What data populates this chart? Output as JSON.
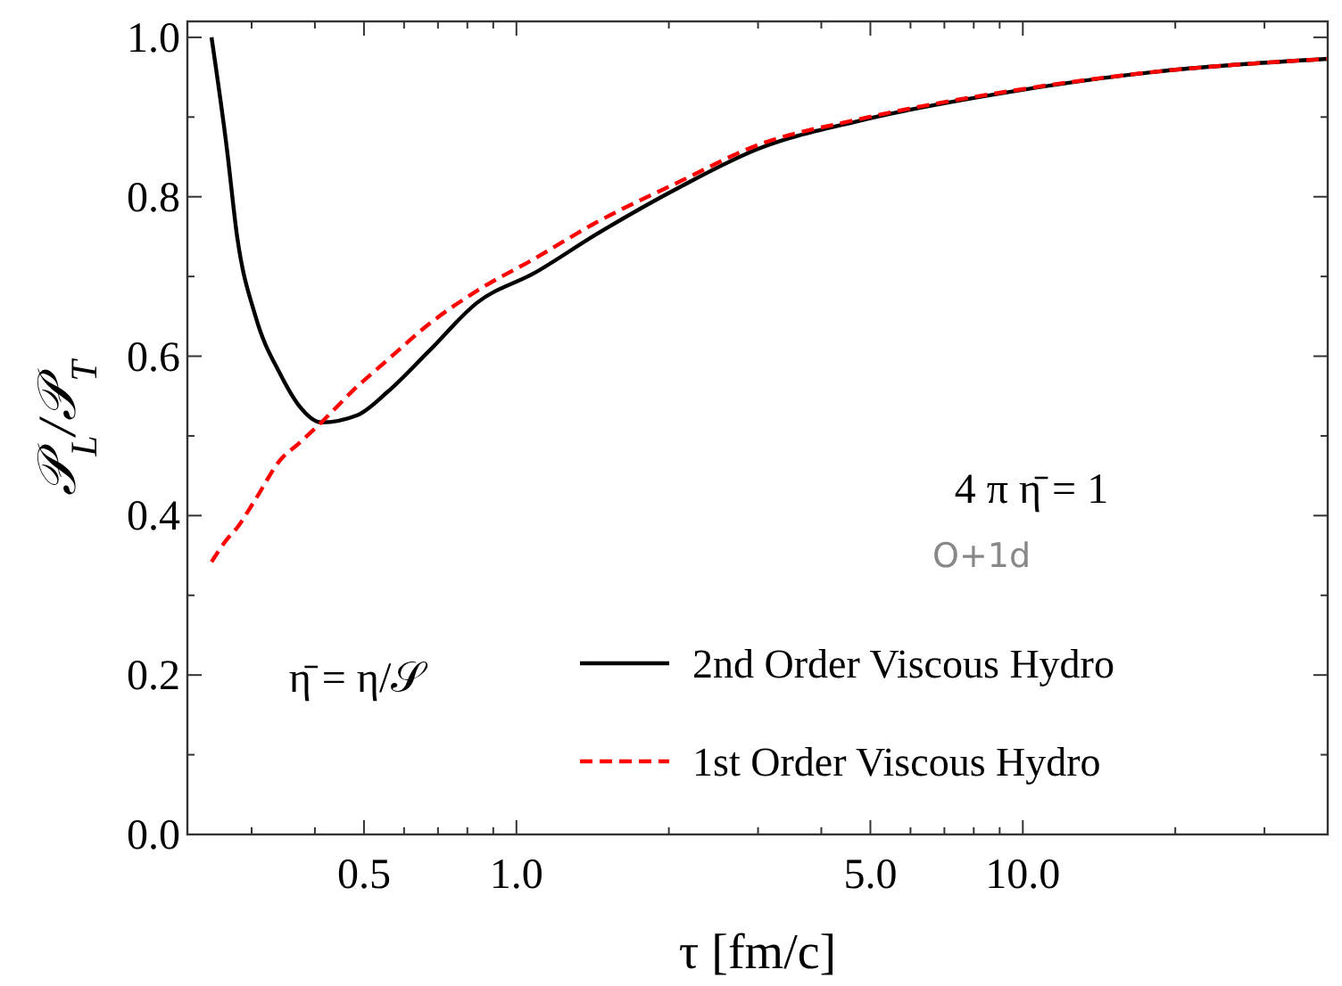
{
  "chart_data": {
    "type": "line",
    "xlabel": "τ [fm/c]",
    "ylabel": "𝒫$_{L}$/𝒫$_{T}$",
    "log": "x",
    "xlim": [
      0.224,
      40
    ],
    "ylim": [
      0,
      1.02
    ],
    "xticks": [
      {
        "value": 0.3,
        "label": null
      },
      {
        "value": 0.4,
        "label": null
      },
      {
        "value": 0.5,
        "label": "0.5"
      },
      {
        "value": 0.6,
        "label": null
      },
      {
        "value": 0.7,
        "label": null
      },
      {
        "value": 0.8,
        "label": null
      },
      {
        "value": 0.9,
        "label": null
      },
      {
        "value": 1,
        "label": "1.0"
      },
      {
        "value": 2,
        "label": null
      },
      {
        "value": 3,
        "label": null
      },
      {
        "value": 4,
        "label": null
      },
      {
        "value": 5,
        "label": "5.0"
      },
      {
        "value": 6,
        "label": null
      },
      {
        "value": 7,
        "label": null
      },
      {
        "value": 8,
        "label": null
      },
      {
        "value": 9,
        "label": null
      },
      {
        "value": 10,
        "label": "10.0"
      },
      {
        "value": 20,
        "label": null
      },
      {
        "value": 30,
        "label": null
      }
    ],
    "yticks": [
      {
        "value": 0,
        "label": "0.0"
      },
      {
        "value": 0.1,
        "label": null
      },
      {
        "value": 0.2,
        "label": "0.2"
      },
      {
        "value": 0.3,
        "label": null
      },
      {
        "value": 0.4,
        "label": "0.4"
      },
      {
        "value": 0.5,
        "label": null
      },
      {
        "value": 0.6,
        "label": "0.6"
      },
      {
        "value": 0.7,
        "label": null
      },
      {
        "value": 0.8,
        "label": "0.8"
      },
      {
        "value": 0.9,
        "label": null
      },
      {
        "value": 1,
        "label": "1.0"
      }
    ],
    "x": [
      0.25,
      0.268,
      0.281,
      0.305,
      0.342,
      0.371,
      0.412,
      0.485,
      0.556,
      0.671,
      0.836,
      1.09,
      1.43,
      2.1,
      3,
      4.73,
      9.3,
      18.4,
      40
    ],
    "series": [
      {
        "name": "2nd Order Viscous Hydro",
        "color": "#000000",
        "line_style": "solid",
        "values": [
          1.0,
          0.861,
          0.749,
          0.651,
          0.577,
          0.539,
          0.517,
          0.526,
          0.555,
          0.606,
          0.667,
          0.705,
          0.752,
          0.812,
          0.86,
          0.895,
          0.931,
          0.957,
          0.973
        ]
      },
      {
        "name": "1st Order Viscous Hydro",
        "color": "#ff0000",
        "line_style": "dashed",
        "values": [
          0.342,
          0.37,
          0.385,
          0.42,
          0.47,
          0.49,
          0.517,
          0.562,
          0.595,
          0.64,
          0.682,
          0.723,
          0.767,
          0.819,
          0.865,
          0.897,
          0.932,
          0.957,
          0.973
        ]
      }
    ],
    "legend": "bottom right",
    "grid": false,
    "marker": "none",
    "annotations": [
      "4 π η̄ = 1",
      "O+1d",
      "η̄ = η/𝒮"
    ]
  }
}
